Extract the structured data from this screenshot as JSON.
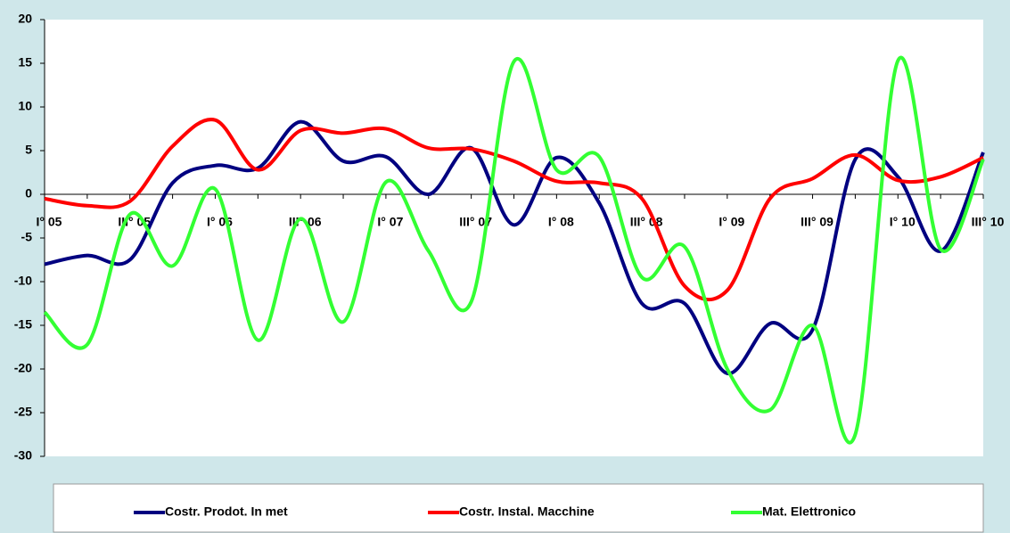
{
  "chart_data": {
    "type": "line",
    "categories": [
      "I° 05",
      null,
      "III° 05",
      null,
      "I° 06",
      null,
      "III° 06",
      null,
      "I° 07",
      null,
      "III° 07",
      null,
      "I° 08",
      null,
      "III° 08",
      null,
      "I° 09",
      null,
      "III° 09",
      null,
      "I° 10",
      null,
      "III° 10"
    ],
    "series": [
      {
        "name": "Costr. Prodot. In met",
        "color": "#000080",
        "values": [
          -8,
          -7,
          -7.5,
          1.3,
          3.3,
          3,
          8.3,
          3.8,
          4.3,
          0,
          5.3,
          -3.5,
          4.2,
          -1,
          -12.5,
          -12.5,
          -20.5,
          -14.8,
          -15.5,
          4,
          2,
          -6.5,
          4.8
        ]
      },
      {
        "name": "Costr. Instal. Macchine",
        "color": "#ff0000",
        "values": [
          -0.5,
          -1.3,
          -0.8,
          5.5,
          8.5,
          2.8,
          7.3,
          7,
          7.5,
          5.3,
          5.2,
          3.8,
          1.5,
          1.3,
          -0.5,
          -10.5,
          -11,
          -0.5,
          1.8,
          4.5,
          1.6,
          2,
          4.2
        ]
      },
      {
        "name": "Mat. Elettronico",
        "color": "#33ff33",
        "values": [
          -13.5,
          -17.2,
          -2.3,
          -8.2,
          0.6,
          -16.7,
          -2.8,
          -14.6,
          1.4,
          -6.5,
          -12.3,
          15.2,
          2.8,
          4.3,
          -9.5,
          -6,
          -20,
          -24.7,
          -15,
          -27.5,
          15.3,
          -6.3,
          4
        ]
      }
    ],
    "ylim": [
      -30,
      20
    ],
    "yticks": [
      20,
      15,
      10,
      5,
      0,
      -5,
      -10,
      -15,
      -20,
      -25,
      -30
    ],
    "legend": "bottom",
    "grid": false
  }
}
